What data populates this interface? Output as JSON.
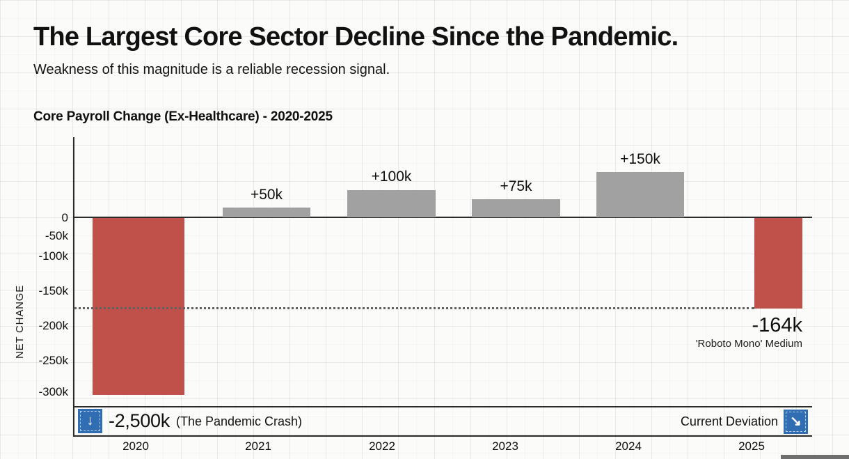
{
  "header": {
    "title": "The Largest Core Sector Decline Since the Pandemic.",
    "subtitle": "Weakness of this magnitude is a reliable recession signal."
  },
  "chart": {
    "title": "Core Payroll Change (Ex-Healthcare) - 2020-2025",
    "y_axis_label": "NET CHANGE"
  },
  "chart_data": {
    "type": "bar",
    "title": "Core Payroll Change (Ex-Healthcare) - 2020-2025",
    "xlabel": "",
    "ylabel": "NET CHANGE",
    "categories": [
      "2020",
      "2021",
      "2022",
      "2023",
      "2024",
      "2025"
    ],
    "values_thousands": [
      -2500,
      50,
      100,
      75,
      150,
      -164
    ],
    "bar_value_labels": [
      "-2,500k",
      "+50k",
      "+100k",
      "+75k",
      "+150k",
      "-164k"
    ],
    "bar_colors": [
      "#c0504a",
      "#a1a1a1",
      "#a1a1a1",
      "#a1a1a1",
      "#a1a1a1",
      "#c0504a"
    ],
    "y_tick_labels": [
      "0",
      "-50k",
      "-100k",
      "-150k",
      "-200k",
      "-250k",
      "-300k"
    ],
    "ylim_thousands": [
      -300,
      175
    ],
    "grid": true,
    "legend_position": "none",
    "notes": {
      "clipped_bar": "2020 bar is clipped at the -300k axis edge; actual value -2,500k (The Pandemic Crash)",
      "reference_line": "dotted horizontal line at approximately -175k marking the 2025 current deviation level"
    }
  },
  "annotations": {
    "deviation_value": "-164k",
    "deviation_font_note": "'Roboto Mono' Medium"
  },
  "footer": {
    "crash_value": "-2,500k",
    "crash_note": "(The Pandemic Crash)",
    "deviation_label": "Current Deviation",
    "down_arrow_glyph": "↓",
    "diag_arrow_glyph": "↘"
  },
  "colors": {
    "negative_bar": "#c0504a",
    "positive_bar": "#a1a1a1",
    "accent_blue": "#316db2",
    "axis": "#2b2b2b",
    "background": "#fbfbf9"
  }
}
